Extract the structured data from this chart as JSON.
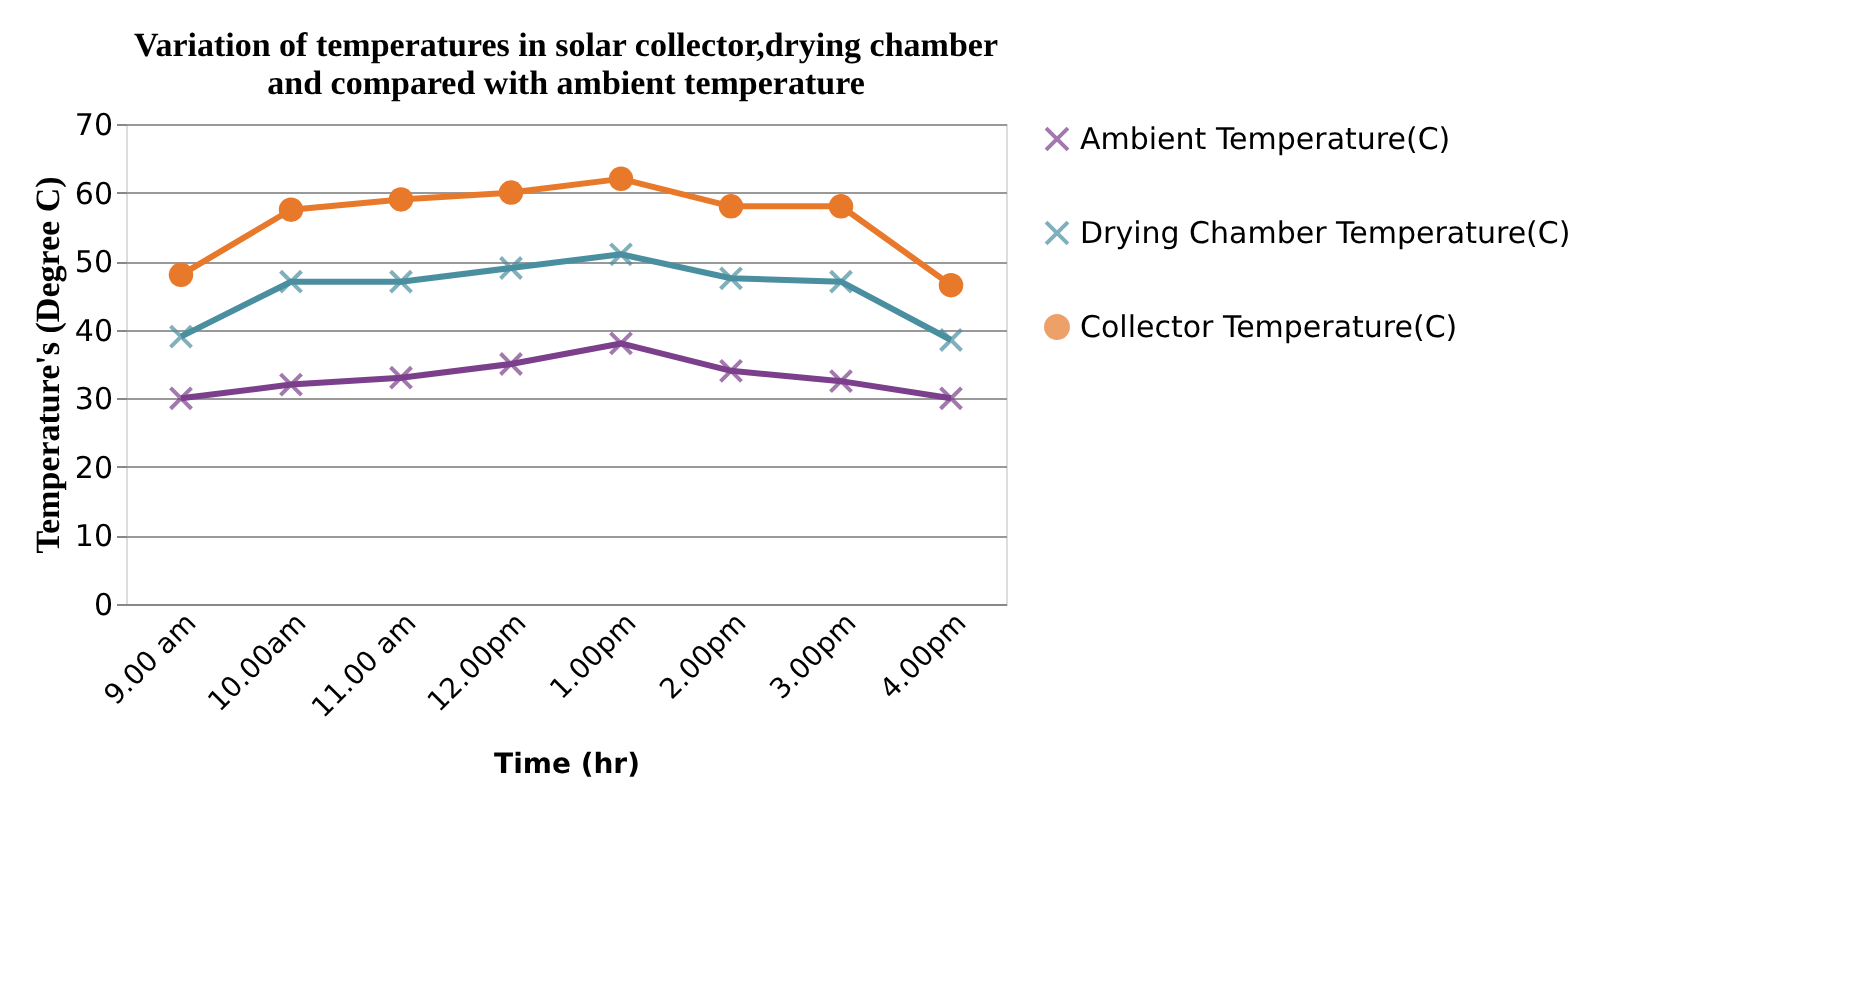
{
  "chart_data": {
    "type": "line",
    "title": "Variation of temperatures in solar collector,drying chamber and compared with ambient  temperature",
    "xlabel": "Time (hr)",
    "ylabel": "Temperature's (Degree C)",
    "categories": [
      "9.00 am",
      "10.00am",
      "11.00 am",
      "12.00pm",
      "1.00pm",
      "2.00pm",
      "3.00pm",
      "4.00pm"
    ],
    "series": [
      {
        "name": "Ambient Temperature(C)",
        "color": "#7b3f8c",
        "marker": "cross",
        "values": [
          30,
          32,
          33,
          35,
          38,
          34,
          32.5,
          30
        ]
      },
      {
        "name": "Drying Chamber Temperature(C)",
        "color": "#4a8fa0",
        "marker": "cross",
        "values": [
          39,
          47,
          47,
          49,
          51,
          47.5,
          47,
          38.5
        ]
      },
      {
        "name": "Collector Temperature(C)",
        "color": "#e8792b",
        "marker": "circle",
        "values": [
          48,
          57.5,
          59,
          60,
          62,
          58,
          58,
          46.5
        ]
      }
    ],
    "ylim": [
      0,
      70
    ],
    "yticks": [
      0,
      10,
      20,
      30,
      40,
      50,
      60,
      70
    ],
    "grid": "y",
    "legend": "right"
  }
}
